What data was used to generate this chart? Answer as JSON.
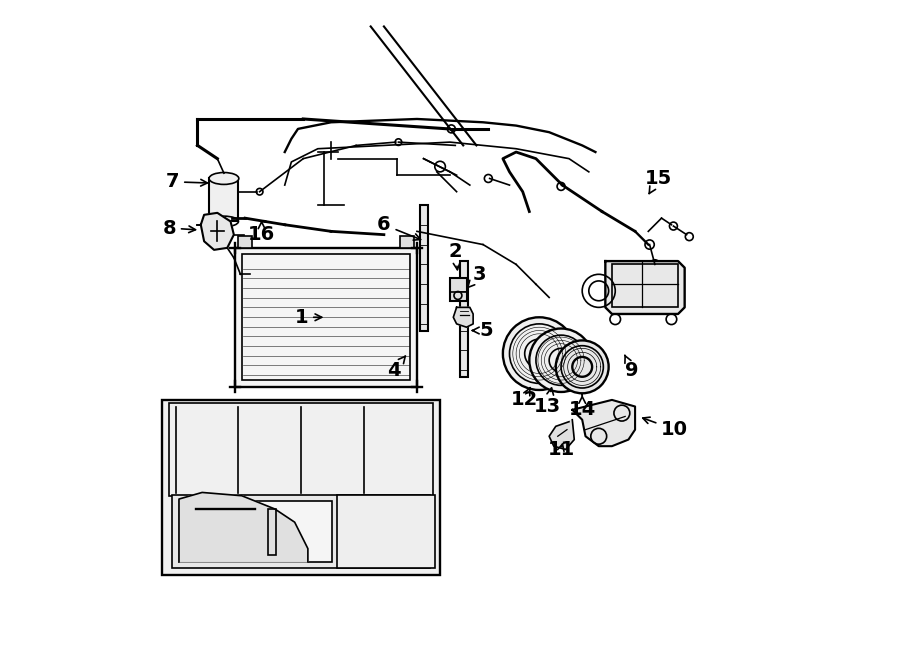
{
  "background_color": "#ffffff",
  "line_color": "#000000",
  "font_size_labels": 14,
  "line_width": 1.2,
  "label_arrow_data": [
    [
      "7",
      [
        0.08,
        0.725
      ],
      [
        0.14,
        0.723
      ]
    ],
    [
      "8",
      [
        0.075,
        0.655
      ],
      [
        0.122,
        0.652
      ]
    ],
    [
      "16",
      [
        0.215,
        0.645
      ],
      [
        0.215,
        0.667
      ]
    ],
    [
      "1",
      [
        0.275,
        0.52
      ],
      [
        0.313,
        0.52
      ]
    ],
    [
      "6",
      [
        0.4,
        0.66
      ],
      [
        0.462,
        0.635
      ]
    ],
    [
      "2",
      [
        0.508,
        0.62
      ],
      [
        0.512,
        0.585
      ]
    ],
    [
      "3",
      [
        0.545,
        0.585
      ],
      [
        0.525,
        0.563
      ]
    ],
    [
      "4",
      [
        0.415,
        0.44
      ],
      [
        0.434,
        0.463
      ]
    ],
    [
      "5",
      [
        0.555,
        0.5
      ],
      [
        0.527,
        0.5
      ]
    ],
    [
      "15",
      [
        0.815,
        0.73
      ],
      [
        0.8,
        0.705
      ]
    ],
    [
      "9",
      [
        0.775,
        0.44
      ],
      [
        0.762,
        0.468
      ]
    ],
    [
      "12",
      [
        0.612,
        0.395
      ],
      [
        0.622,
        0.415
      ]
    ],
    [
      "13",
      [
        0.648,
        0.385
      ],
      [
        0.655,
        0.42
      ]
    ],
    [
      "14",
      [
        0.7,
        0.38
      ],
      [
        0.7,
        0.407
      ]
    ],
    [
      "10",
      [
        0.84,
        0.35
      ],
      [
        0.785,
        0.37
      ]
    ],
    [
      "11",
      [
        0.668,
        0.32
      ],
      [
        0.672,
        0.335
      ]
    ]
  ]
}
